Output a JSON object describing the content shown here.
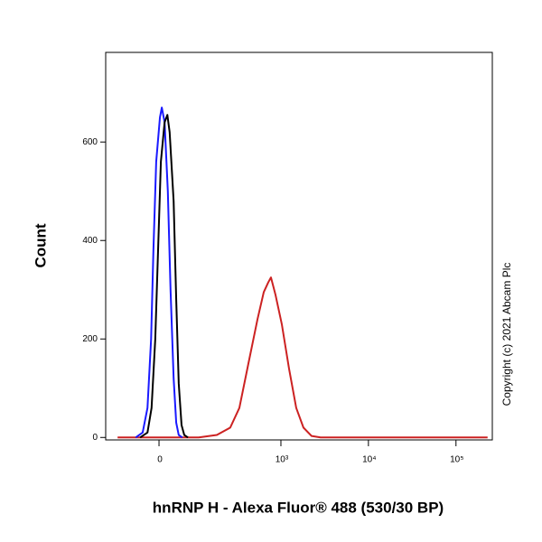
{
  "chart_data": {
    "type": "line",
    "x_label": "hnRNP H - Alexa Fluor® 488 (530/30 BP)",
    "y_label": "Count",
    "annotation": "Copyright (c) 2021 Abcam Plc",
    "xscale": "biexponential",
    "xlim": [
      -155,
      260000
    ],
    "xticks": [
      0,
      {
        "value": 1000,
        "label": "10³"
      },
      {
        "value": 10000,
        "label": "10⁴"
      },
      {
        "value": 100000,
        "label": "10⁵"
      }
    ],
    "ylim": [
      -5,
      782
    ],
    "yticks": [
      0,
      200,
      400,
      600
    ],
    "series": [
      {
        "color": "#cc2222",
        "x": [
          -107,
          101,
          177,
          258,
          331,
          422,
          538,
          635,
          716,
          769,
          866,
          1024,
          1238,
          1497,
          1811,
          2244,
          2842,
          229600
        ],
        "values": [
          0,
          0,
          5,
          20,
          60,
          150,
          240,
          295,
          315,
          325,
          290,
          230,
          140,
          60,
          20,
          3,
          0,
          0
        ]
      },
      {
        "color": "#1a1aff",
        "x": [
          -53,
          -36,
          -25,
          -17,
          -12,
          -6,
          2,
          6,
          12,
          19,
          25,
          32,
          38,
          44,
          53
        ],
        "values": [
          0,
          10,
          60,
          200,
          380,
          560,
          650,
          670,
          640,
          500,
          300,
          120,
          30,
          5,
          0
        ]
      },
      {
        "color": "#000000",
        "x": [
          -42,
          -25,
          -16,
          -8,
          -2,
          4,
          12,
          18,
          23,
          32,
          38,
          44,
          51,
          58,
          68
        ],
        "values": [
          0,
          10,
          60,
          200,
          380,
          560,
          640,
          655,
          620,
          480,
          280,
          110,
          25,
          5,
          0
        ]
      }
    ]
  }
}
